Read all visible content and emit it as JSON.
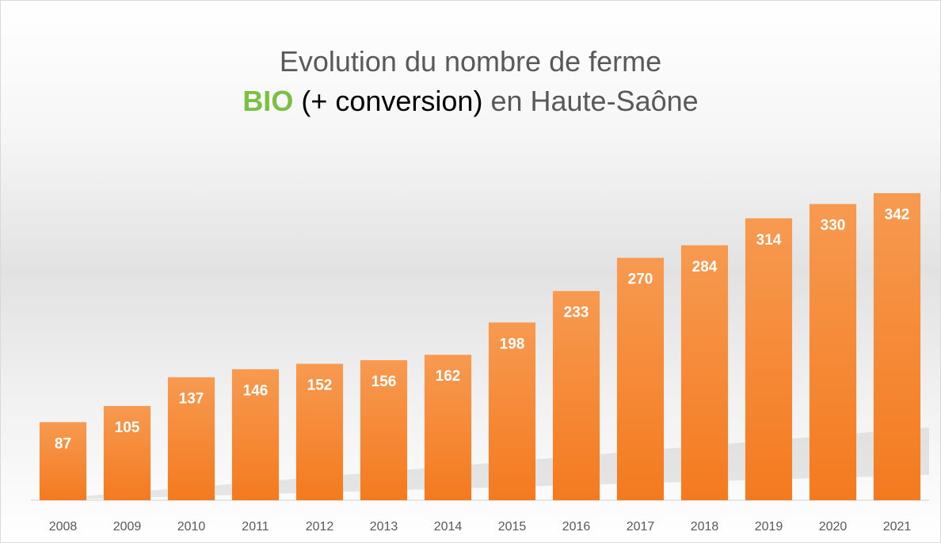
{
  "chart_data": {
    "type": "bar",
    "title": [
      [
        {
          "text": "Evolution du nombre de ferme",
          "color": "#595959",
          "bold": false
        }
      ],
      [
        {
          "text": "BIO",
          "color": "#7ac143",
          "bold": true
        },
        {
          "text": "(+ conversion)",
          "color": "#000000",
          "bold": false
        },
        {
          "text": "en Haute-Saône",
          "color": "#595959",
          "bold": false
        }
      ]
    ],
    "categories": [
      "2008",
      "2009",
      "2010",
      "2011",
      "2012",
      "2013",
      "2014",
      "2015",
      "2016",
      "2017",
      "2018",
      "2019",
      "2020",
      "2021"
    ],
    "values": [
      87,
      105,
      137,
      146,
      152,
      156,
      162,
      198,
      233,
      270,
      284,
      314,
      330,
      342
    ],
    "color": "#f58a35",
    "ylim": [
      0,
      350
    ],
    "data_labels": true,
    "grid": false
  }
}
